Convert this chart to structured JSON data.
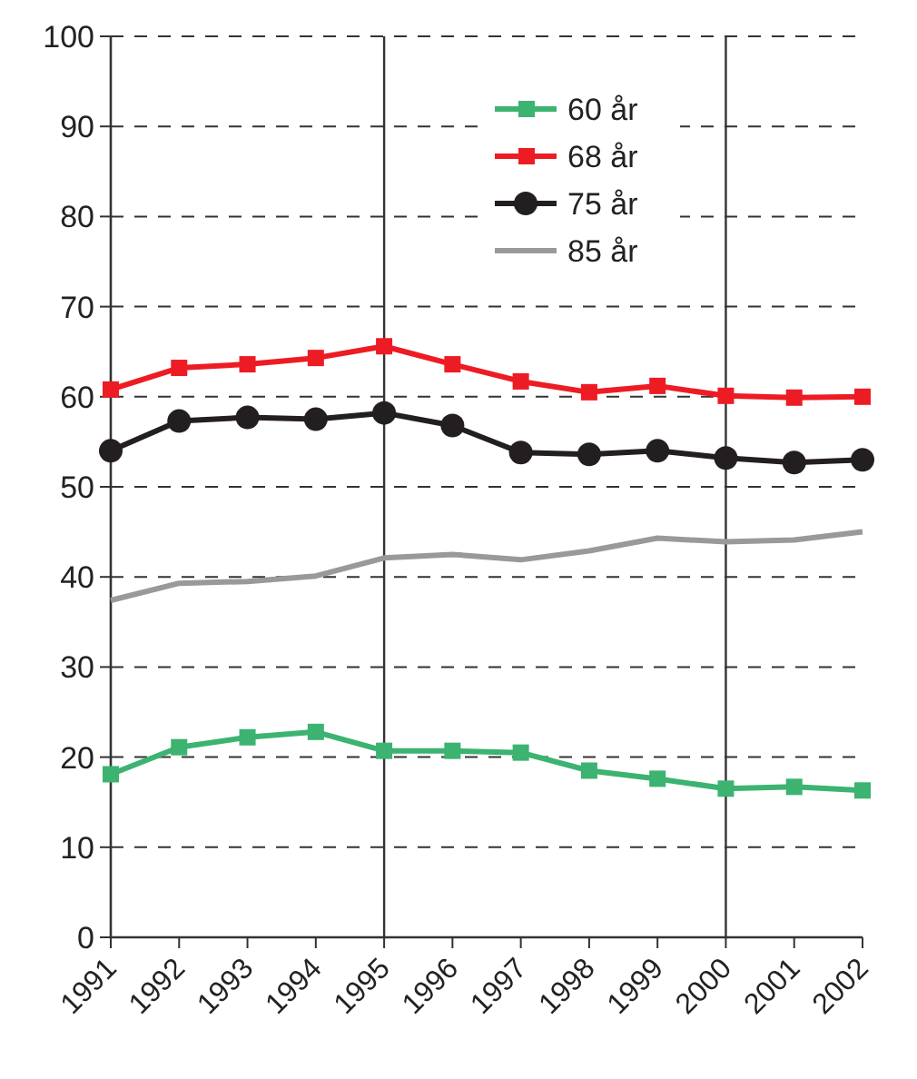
{
  "chart_data": {
    "type": "line",
    "categories": [
      "1991",
      "1992",
      "1993",
      "1994",
      "1995",
      "1996",
      "1997",
      "1998",
      "1999",
      "2000",
      "2001",
      "2002"
    ],
    "series": [
      {
        "name": "60 år",
        "color": "#3cb371",
        "marker": "square",
        "values": [
          18.1,
          21.1,
          22.2,
          22.8,
          20.7,
          20.7,
          20.5,
          18.5,
          17.6,
          16.5,
          16.7,
          16.3
        ]
      },
      {
        "name": "68 år",
        "color": "#ed1c24",
        "marker": "square",
        "values": [
          60.8,
          63.2,
          63.6,
          64.3,
          65.6,
          63.6,
          61.7,
          60.5,
          61.2,
          60.1,
          59.9,
          60.0
        ]
      },
      {
        "name": "75 år",
        "color": "#231f20",
        "marker": "circle",
        "values": [
          54.0,
          57.3,
          57.7,
          57.5,
          58.2,
          56.8,
          53.8,
          53.6,
          54.0,
          53.2,
          52.7,
          53.0
        ]
      },
      {
        "name": "85 år",
        "color": "#999999",
        "marker": "none",
        "values": [
          37.4,
          39.3,
          39.5,
          40.1,
          42.1,
          42.5,
          41.9,
          42.9,
          44.3,
          43.9,
          44.1,
          45.0
        ]
      }
    ],
    "ylim": [
      0,
      100
    ],
    "yticks": [
      0,
      10,
      20,
      30,
      40,
      50,
      60,
      70,
      80,
      90,
      100
    ],
    "grid": "y",
    "legend": "top",
    "ref_lines": [
      {
        "axis": "x",
        "value": "1995",
        "color": "#333333"
      },
      {
        "axis": "x",
        "value": "2000",
        "color": "#333333"
      }
    ]
  }
}
